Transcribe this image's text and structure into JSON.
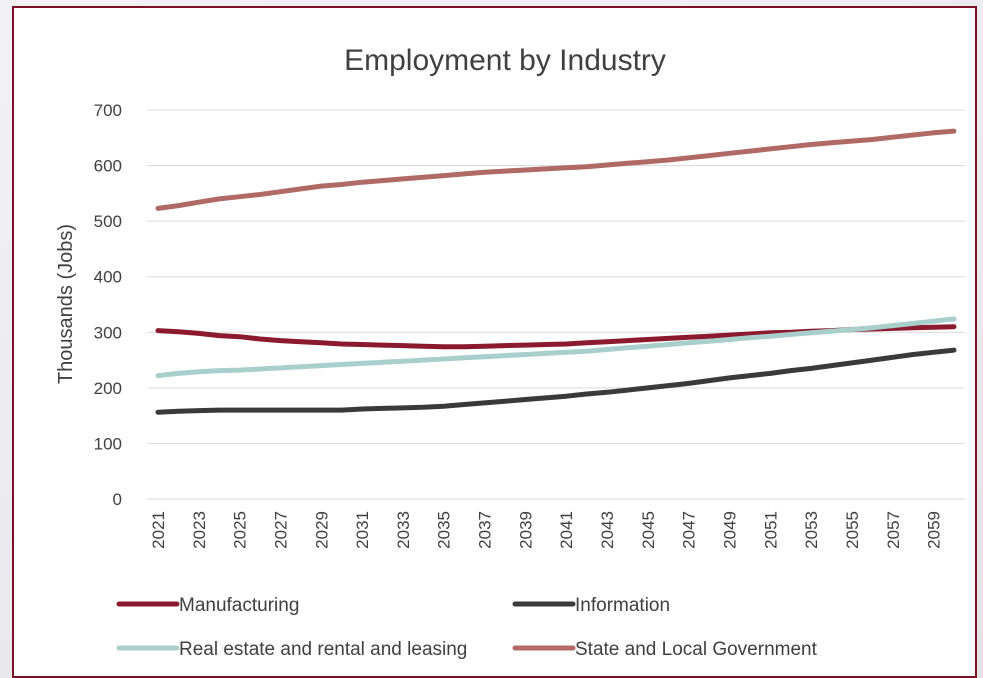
{
  "chart_data": {
    "type": "line",
    "title": "Employment by Industry",
    "xlabel": "",
    "ylabel": "Thousands (Jobs)",
    "ylim": [
      0,
      700
    ],
    "yticks": [
      0,
      100,
      200,
      300,
      400,
      500,
      600,
      700
    ],
    "grid": true,
    "legend_position": "bottom",
    "x": [
      2021,
      2022,
      2023,
      2024,
      2025,
      2026,
      2027,
      2028,
      2029,
      2030,
      2031,
      2032,
      2033,
      2034,
      2035,
      2036,
      2037,
      2038,
      2039,
      2040,
      2041,
      2042,
      2043,
      2044,
      2045,
      2046,
      2047,
      2048,
      2049,
      2050,
      2051,
      2052,
      2053,
      2054,
      2055,
      2056,
      2057,
      2058,
      2059,
      2060
    ],
    "x_tick_labels": [
      "2021",
      "2023",
      "2025",
      "2027",
      "2029",
      "2031",
      "2033",
      "2035",
      "2037",
      "2039",
      "2041",
      "2043",
      "2045",
      "2047",
      "2049",
      "2051",
      "2053",
      "2055",
      "2057",
      "2059"
    ],
    "series": [
      {
        "name": "Manufacturing",
        "color": "#8b1a2e",
        "values": [
          303,
          301,
          298,
          294,
          292,
          288,
          285,
          283,
          281,
          279,
          278,
          277,
          276,
          275,
          274,
          274,
          275,
          276,
          277,
          278,
          279,
          281,
          283,
          285,
          287,
          289,
          291,
          293,
          295,
          297,
          299,
          300,
          302,
          303,
          305,
          306,
          307,
          308,
          309,
          310
        ]
      },
      {
        "name": "Information",
        "color": "#3a3a3a",
        "values": [
          156,
          158,
          159,
          160,
          160,
          160,
          160,
          160,
          160,
          160,
          162,
          163,
          164,
          165,
          167,
          170,
          173,
          176,
          179,
          182,
          185,
          189,
          192,
          196,
          200,
          204,
          208,
          213,
          218,
          222,
          226,
          231,
          235,
          240,
          245,
          250,
          255,
          260,
          264,
          268
        ]
      },
      {
        "name": "Real estate and rental and leasing",
        "color": "#a8cfcc",
        "values": [
          222,
          226,
          229,
          231,
          232,
          234,
          236,
          238,
          240,
          242,
          244,
          246,
          248,
          250,
          252,
          254,
          256,
          258,
          260,
          262,
          264,
          266,
          269,
          272,
          275,
          278,
          281,
          284,
          287,
          290,
          293,
          296,
          299,
          302,
          305,
          308,
          312,
          316,
          320,
          324
        ]
      },
      {
        "name": "State and Local Government",
        "color": "#b06a65",
        "values": [
          523,
          528,
          534,
          540,
          544,
          548,
          553,
          558,
          563,
          566,
          570,
          573,
          576,
          579,
          582,
          585,
          588,
          590,
          592,
          594,
          596,
          598,
          601,
          604,
          607,
          610,
          614,
          618,
          622,
          626,
          630,
          634,
          638,
          641,
          644,
          647,
          651,
          655,
          659,
          662
        ]
      }
    ]
  }
}
